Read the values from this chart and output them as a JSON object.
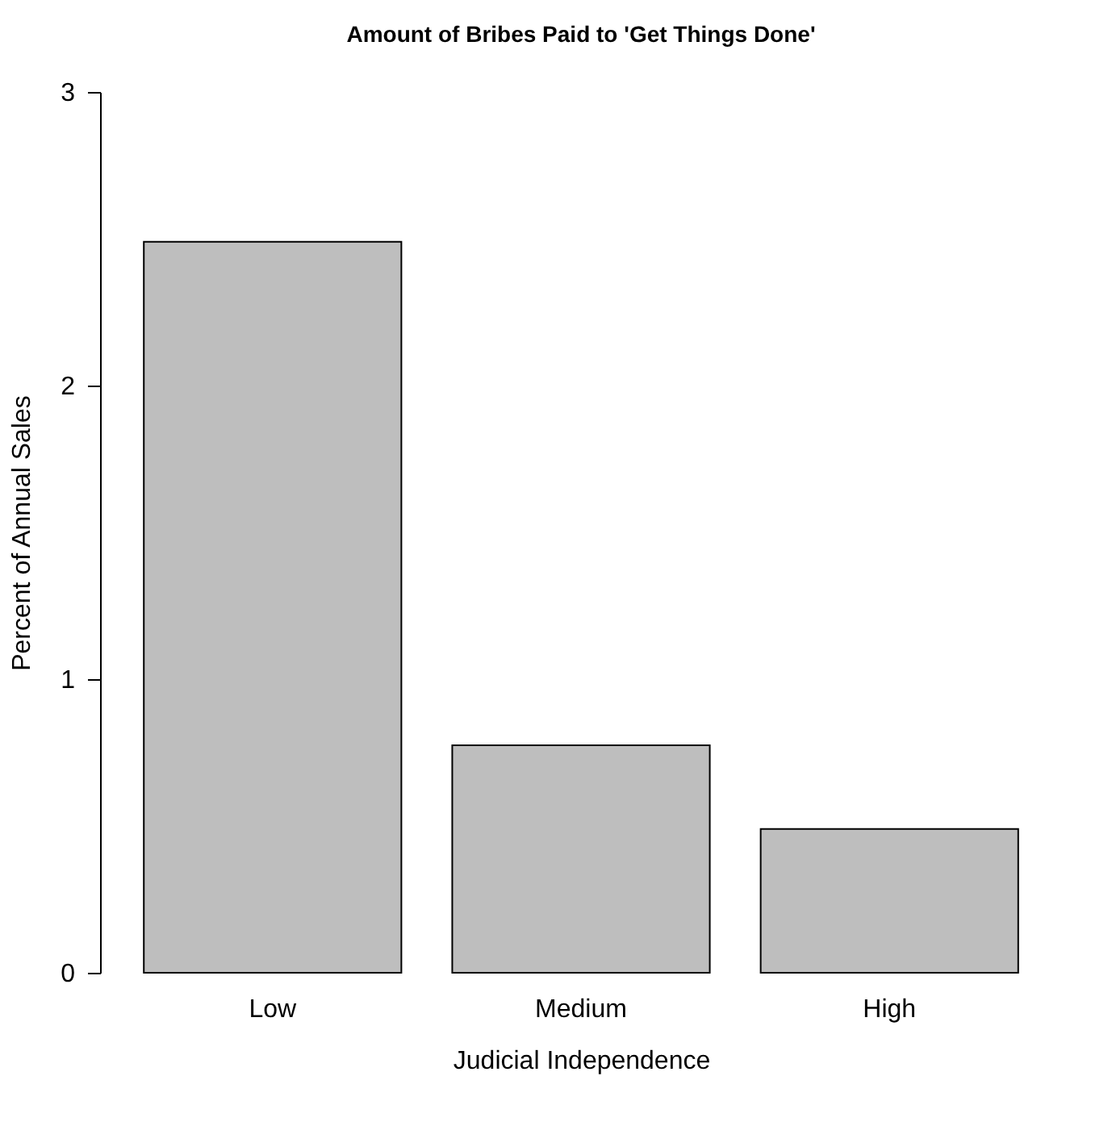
{
  "chart_data": {
    "type": "bar",
    "title": "Amount of Bribes Paid to 'Get Things Done'",
    "xlabel": "Judicial Independence",
    "ylabel": "Percent of Annual Sales",
    "categories": [
      "Low",
      "Medium",
      "High"
    ],
    "values": [
      2.49,
      0.775,
      0.49
    ],
    "color": "#bebebe",
    "ylim": [
      0,
      3
    ],
    "yticks": [
      0,
      1,
      2,
      3
    ],
    "grid": false
  }
}
